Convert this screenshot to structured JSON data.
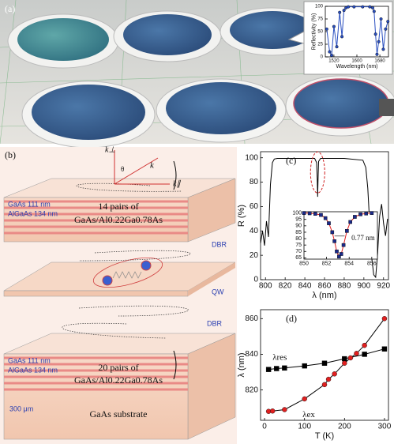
{
  "panel_a": {
    "label": "(a)"
  },
  "panel_b": {
    "label": "(b)",
    "k_perp": "k⊥",
    "theta": "θ",
    "k": "k",
    "k_par": "k∥",
    "top_stack": {
      "layer1": "GaAs 111 nm",
      "layer2": "AlGaAs 134 nm",
      "pairs": "14 pairs of",
      "composition": "GaAs/Al0.22Ga0.78As"
    },
    "dbr_top": "DBR",
    "qw": "QW",
    "dbr_bottom": "DBR",
    "bottom_stack": {
      "layer1": "GaAs 111 nm",
      "layer2": "AlGaAs 134 nm",
      "pairs": "20 pairs of",
      "composition": "GaAs/Al0.22Ga0.78As"
    },
    "thickness": "300 μm",
    "substrate": "GaAs substrate"
  },
  "chart_data": [
    {
      "type": "line",
      "xlabel": "Wavelength (nm)",
      "ylabel": "Reflectivity (%)",
      "xlim": [
        1490,
        1710
      ],
      "xticks": [
        1520,
        1600,
        1680
      ],
      "ylim": [
        0,
        100
      ],
      "yticks": [
        0,
        25,
        50,
        75,
        100
      ],
      "series": [
        {
          "color": "#2a4fc0",
          "marker": "circle",
          "x": [
            1495,
            1505,
            1512,
            1520,
            1530,
            1540,
            1548,
            1555,
            1562,
            1570,
            1590,
            1620,
            1645,
            1655,
            1660,
            1665,
            1670,
            1676,
            1684,
            1692,
            1700,
            1708
          ],
          "values": [
            55,
            10,
            3,
            60,
            20,
            88,
            40,
            92,
            97,
            99,
            99,
            99,
            99,
            97,
            90,
            45,
            5,
            30,
            75,
            15,
            55,
            70
          ]
        }
      ]
    },
    {
      "type": "line",
      "label": "(c)",
      "xlabel": "λ (nm)",
      "ylabel": "R (%)",
      "xlim": [
        795,
        925
      ],
      "xticks": [
        800,
        820,
        840,
        860,
        880,
        900,
        920
      ],
      "ylim": [
        0,
        105
      ],
      "yticks": [
        0,
        20,
        40,
        60,
        80,
        100
      ],
      "series": [
        {
          "color": "#000000",
          "x": [
            795,
            797,
            799,
            801,
            803,
            805,
            807,
            809,
            812,
            830,
            850,
            852,
            852.6,
            853,
            853.4,
            854,
            856,
            880,
            899,
            902,
            904,
            906,
            908,
            910,
            912,
            914,
            916,
            918,
            920,
            922,
            924
          ],
          "values": [
            30,
            40,
            28,
            48,
            35,
            78,
            96,
            99,
            99.5,
            99.5,
            99.5,
            96,
            82,
            68,
            82,
            97,
            99.5,
            99.5,
            98,
            92,
            75,
            45,
            18,
            4,
            2,
            22,
            52,
            62,
            46,
            36,
            50
          ]
        }
      ]
    },
    {
      "type": "line",
      "annotation": "0.77 nm",
      "xlim": [
        850,
        856.5
      ],
      "xticks": [
        850,
        852,
        854,
        856
      ],
      "ylim": [
        64,
        101
      ],
      "yticks": [
        65,
        70,
        75,
        80,
        85,
        90,
        95,
        100
      ],
      "series": [
        {
          "color": "#e02020",
          "marker": "square",
          "marker_color": "#1a2a8a",
          "x": [
            850,
            850.5,
            851,
            851.5,
            851.9,
            852.2,
            852.5,
            852.7,
            852.9,
            853.1,
            853.3,
            853.5,
            853.8,
            854.1,
            854.5,
            855,
            855.5,
            856
          ],
          "values": [
            100,
            99.8,
            99.4,
            98.5,
            96,
            92,
            85,
            78,
            70,
            66,
            68,
            75,
            86,
            93,
            97,
            99,
            99.6,
            100
          ]
        }
      ]
    },
    {
      "type": "line",
      "label": "(d)",
      "xlabel": "T (K)",
      "ylabel": "λ (nm)",
      "xlim": [
        -10,
        310
      ],
      "xticks": [
        0,
        100,
        200,
        300
      ],
      "ylim": [
        803,
        865
      ],
      "yticks": [
        820,
        840,
        860
      ],
      "series": [
        {
          "name": "λres",
          "color": "#000000",
          "marker": "square",
          "marker_color": "#000000",
          "x": [
            10,
            30,
            50,
            100,
            150,
            200,
            250,
            300
          ],
          "values": [
            831.5,
            832,
            832.3,
            833.5,
            835,
            837.5,
            840,
            843
          ]
        },
        {
          "name": "λex",
          "color": "#000000",
          "marker": "circle",
          "marker_color": "#e02020",
          "x": [
            10,
            20,
            50,
            100,
            150,
            160,
            175,
            200,
            215,
            230,
            250,
            300
          ],
          "values": [
            808,
            808.2,
            809,
            815,
            823,
            826,
            829,
            835,
            838,
            840.5,
            845,
            860
          ]
        }
      ]
    }
  ]
}
